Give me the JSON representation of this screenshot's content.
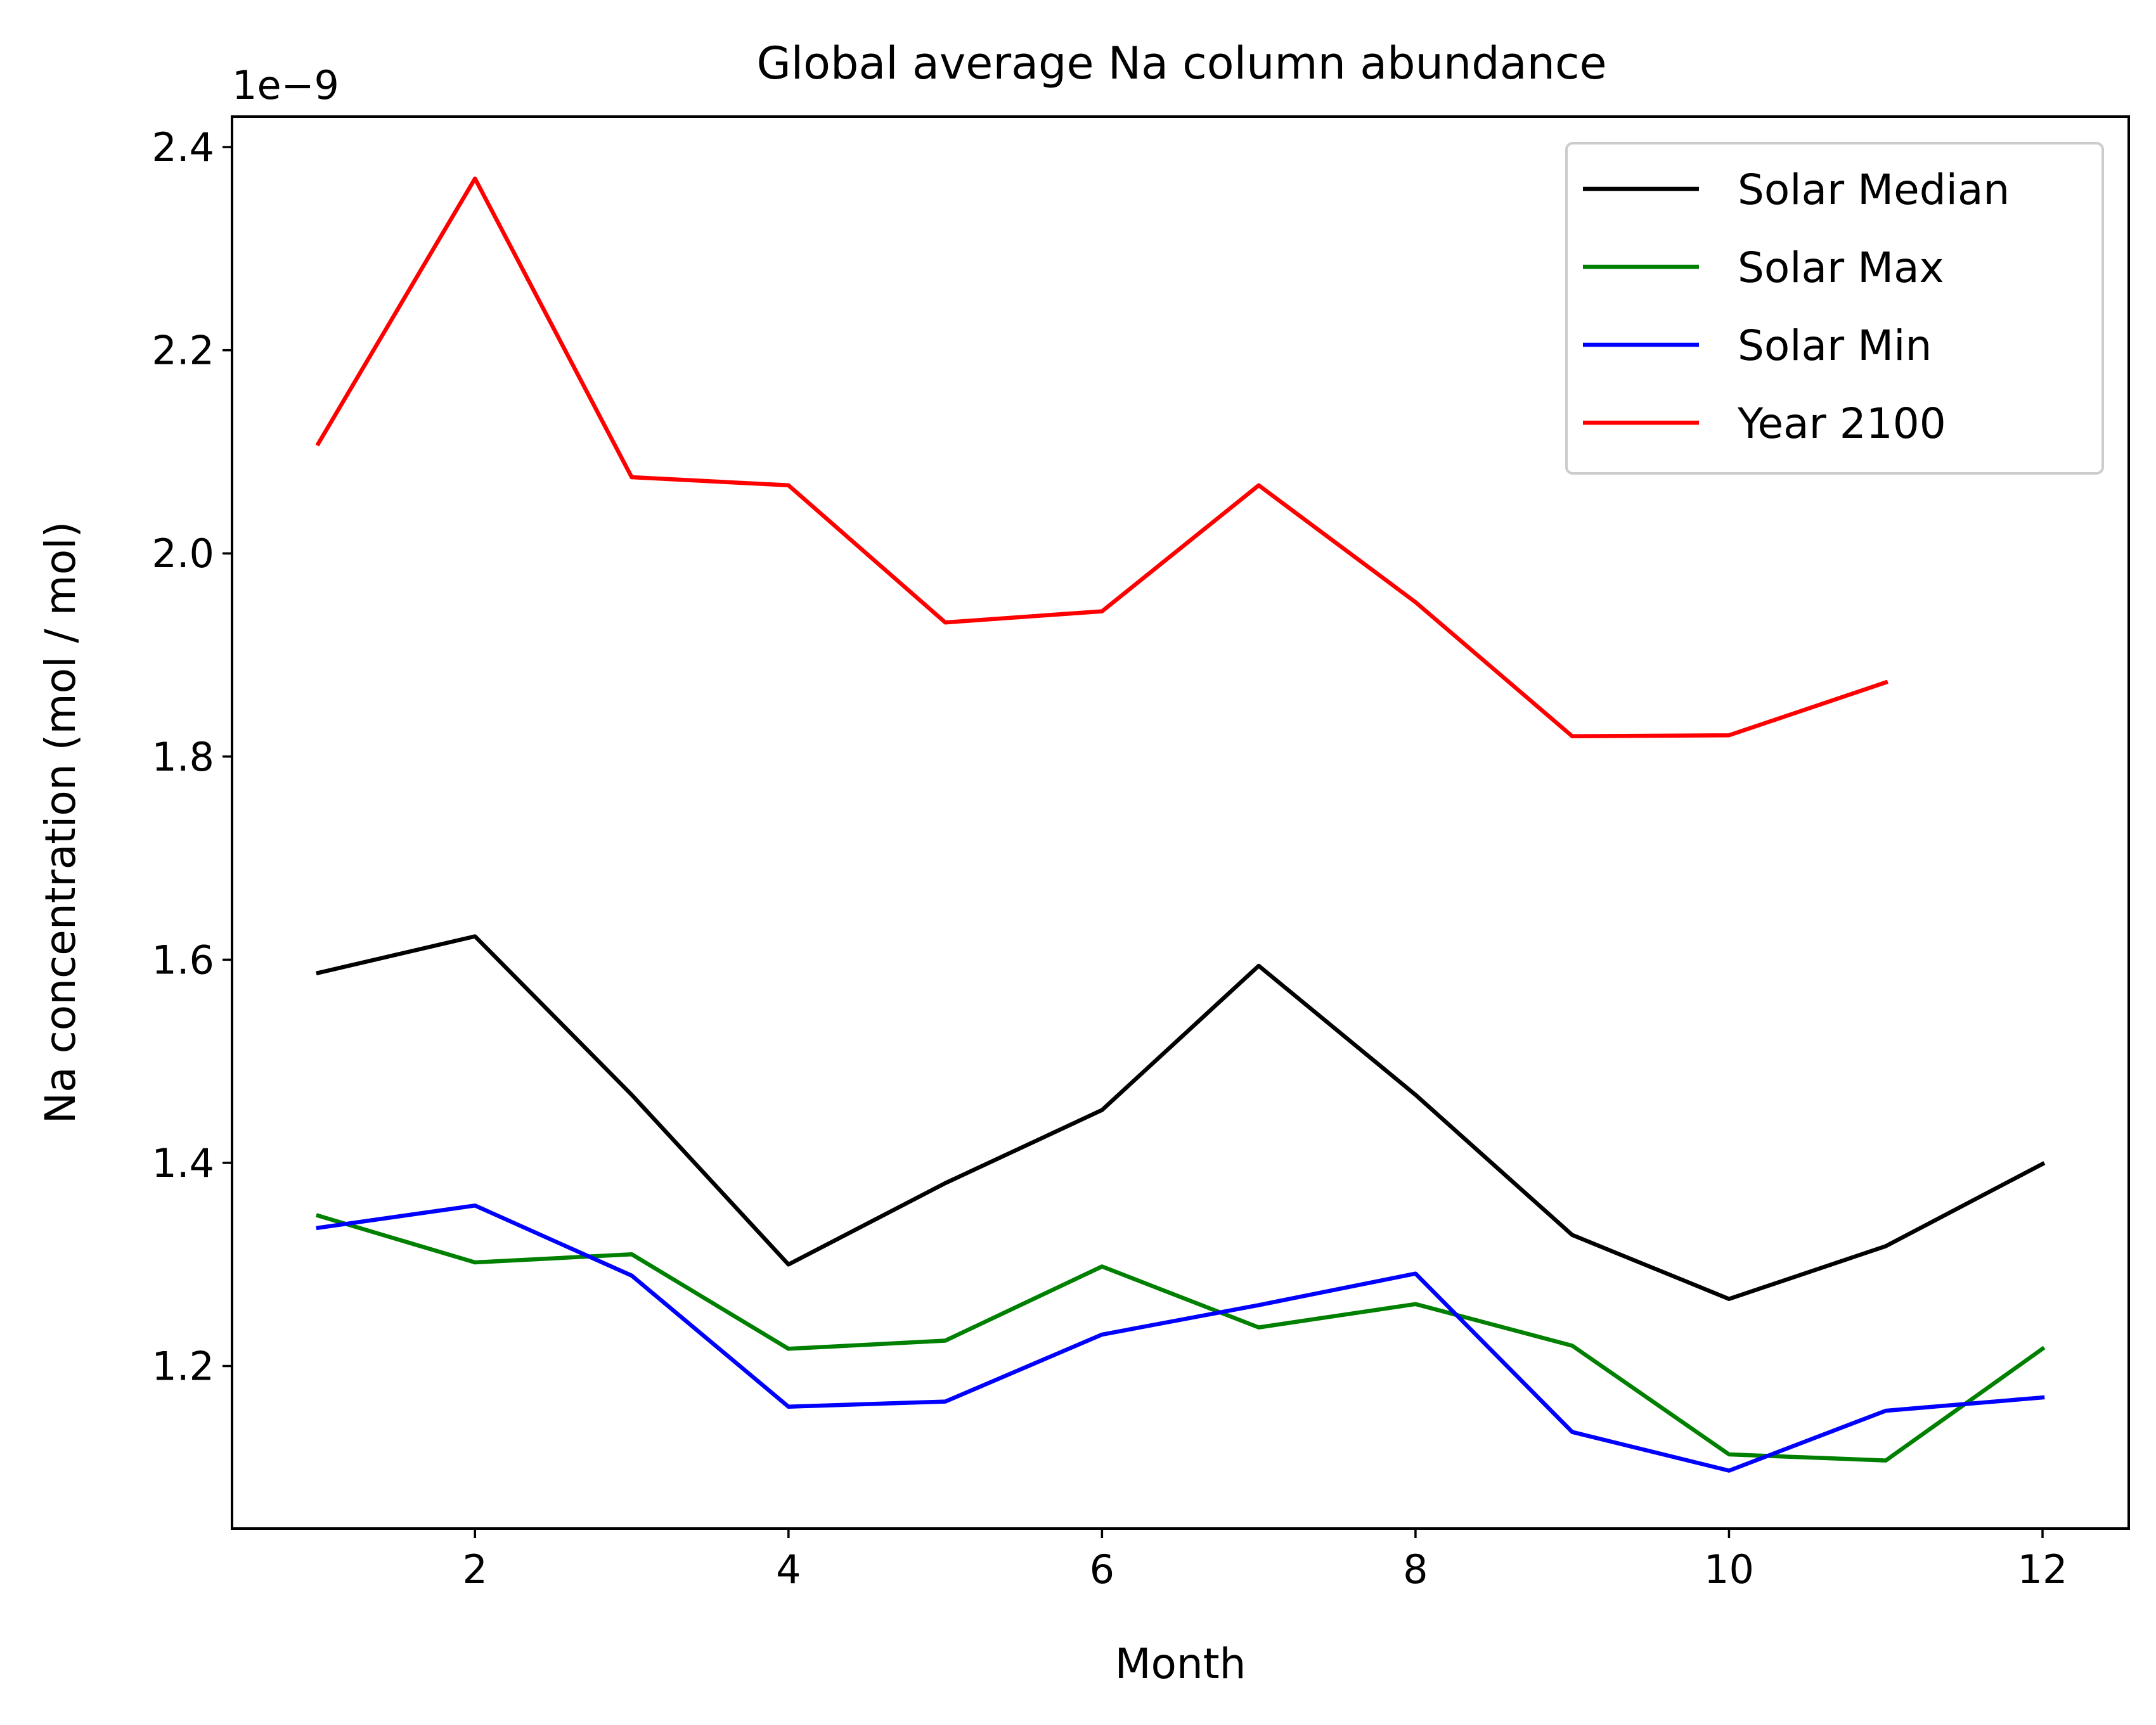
{
  "chart_data": {
    "type": "line",
    "title": "Global average Na column abundance",
    "xlabel": "Month",
    "ylabel": "Na concentration (mol / mol)",
    "y_offset_label": "1e−9",
    "xlim": [
      0.45,
      12.55
    ],
    "ylim": [
      1.04,
      2.43
    ],
    "xticks": [
      2,
      4,
      6,
      8,
      10,
      12
    ],
    "xtick_labels": [
      "2",
      "4",
      "6",
      "8",
      "10",
      "12"
    ],
    "yticks": [
      1.2,
      1.4,
      1.6,
      1.8,
      2.0,
      2.2,
      2.4
    ],
    "ytick_labels": [
      "1.2",
      "1.4",
      "1.6",
      "1.8",
      "2.0",
      "2.2",
      "2.4"
    ],
    "grid": false,
    "legend_position": "top-right",
    "x": [
      1,
      2,
      3,
      4,
      5,
      6,
      7,
      8,
      9,
      10,
      11,
      12
    ],
    "series": [
      {
        "name": "Solar Median",
        "color": "#000000",
        "values": [
          1.587,
          1.623,
          1.467,
          1.3,
          1.38,
          1.452,
          1.594,
          1.467,
          1.329,
          1.266,
          1.318,
          1.399
        ]
      },
      {
        "name": "Solar Max",
        "color": "#008000",
        "values": [
          1.348,
          1.302,
          1.31,
          1.217,
          1.225,
          1.298,
          1.238,
          1.261,
          1.22,
          1.113,
          1.107,
          1.217
        ]
      },
      {
        "name": "Solar Min",
        "color": "#0000ff",
        "values": [
          1.336,
          1.358,
          1.289,
          1.16,
          1.165,
          1.231,
          1.26,
          1.291,
          1.135,
          1.097,
          1.156,
          1.169
        ]
      },
      {
        "name": "Year 2100",
        "color": "#ff0000",
        "values": [
          2.108,
          2.369,
          2.075,
          2.067,
          1.932,
          1.943,
          2.067,
          1.952,
          1.82,
          1.821,
          1.873,
          null
        ]
      }
    ]
  }
}
